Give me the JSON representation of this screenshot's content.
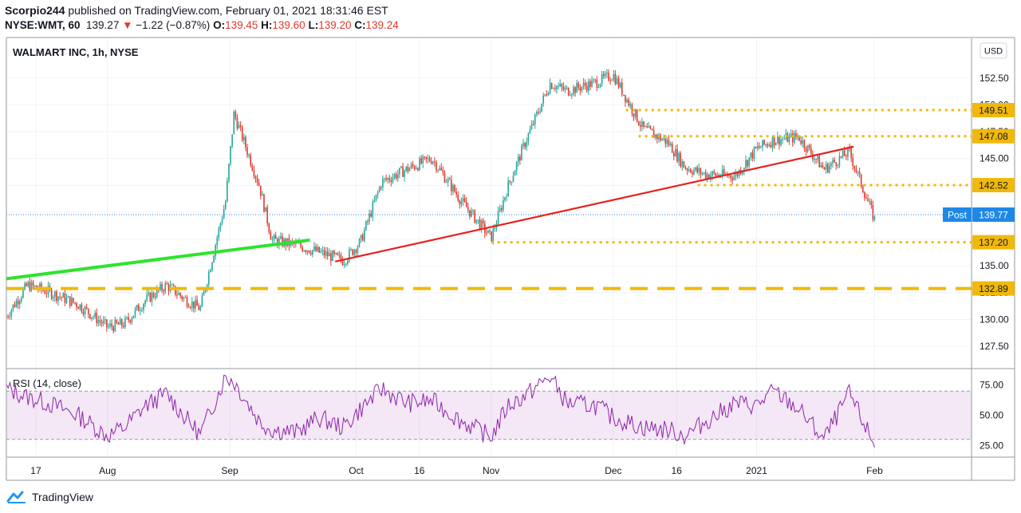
{
  "header": {
    "author": "Scorpio244",
    "published_text": "published on TradingView.com, February 01, 2021 18:31:46 EST",
    "symbol": "NYSE:WMT, 60",
    "last": "139.27",
    "change_arrow": "▼",
    "change": "−1.22 (−0.87%)",
    "open_label": "O:",
    "open": "139.45",
    "high_label": "H:",
    "high": "139.60",
    "low_label": "L:",
    "low": "139.20",
    "close_label": "C:",
    "close": "139.24"
  },
  "footer": {
    "brand": "TradingView"
  },
  "colors": {
    "up": "#26a69a",
    "down": "#e0392d",
    "red_trend": "#e8211c",
    "green_trend": "#2ee32e",
    "level": "#f0b90b",
    "rsi": "#8e24aa",
    "rsi_band": "rgba(186,104,200,0.16)",
    "post": "#1e88e5"
  },
  "chart_data": [
    {
      "type": "candlestick",
      "title": "WALMART INC, 1h, NYSE",
      "currency": "USD",
      "ylim": [
        125.5,
        156.2
      ],
      "y_ticks": [
        "152.50",
        "150.00",
        "147.50",
        "145.00",
        "142.50",
        "140.00",
        "137.50",
        "135.00",
        "132.50",
        "130.00",
        "127.50"
      ],
      "x_ticks": [
        "17",
        "Aug",
        "Sep",
        "Oct",
        "16",
        "Nov",
        "Dec",
        "16",
        "2021",
        "Feb"
      ],
      "x_tick_dates": [
        "2020-07-17",
        "2020-08-03",
        "2020-09-01",
        "2020-10-01",
        "2020-10-16",
        "2020-11-02",
        "2020-12-01",
        "2020-12-16",
        "2021-01-04",
        "2021-02-01"
      ],
      "x_range": [
        "2020-07-10",
        "2021-02-24"
      ],
      "series": [
        {
          "name": "WMT close (approx.)",
          "x": [
            "2020-07-10",
            "2020-07-15",
            "2020-07-20",
            "2020-07-27",
            "2020-08-03",
            "2020-08-07",
            "2020-08-12",
            "2020-08-17",
            "2020-08-21",
            "2020-08-25",
            "2020-08-31",
            "2020-09-02",
            "2020-09-08",
            "2020-09-11",
            "2020-09-17",
            "2020-09-22",
            "2020-09-28",
            "2020-10-02",
            "2020-10-07",
            "2020-10-13",
            "2020-10-19",
            "2020-10-26",
            "2020-11-02",
            "2020-11-06",
            "2020-11-10",
            "2020-11-16",
            "2020-11-20",
            "2020-11-27",
            "2020-12-01",
            "2020-12-08",
            "2020-12-14",
            "2020-12-18",
            "2020-12-23",
            "2020-12-30",
            "2021-01-04",
            "2021-01-08",
            "2021-01-14",
            "2021-01-20",
            "2021-01-26",
            "2021-02-01"
          ],
          "close": [
            130.3,
            133.2,
            132.6,
            131.4,
            129.3,
            129.6,
            131.8,
            133.2,
            132.0,
            131.0,
            141.0,
            149.2,
            142.5,
            137.4,
            136.9,
            136.3,
            135.5,
            137.2,
            142.8,
            144.0,
            145.0,
            141.0,
            137.6,
            142.4,
            146.4,
            152.0,
            151.3,
            152.1,
            152.8,
            147.8,
            146.5,
            144.2,
            143.5,
            143.4,
            145.9,
            146.7,
            147.0,
            144.0,
            145.6,
            139.3
          ]
        },
        {
          "name": "Red trend line",
          "x": [
            "2020-09-26",
            "2021-01-27"
          ],
          "y": [
            135.4,
            146.1
          ]
        },
        {
          "name": "Green trend line",
          "x": [
            "2020-07-10",
            "2020-09-20"
          ],
          "y": [
            133.8,
            137.4
          ]
        }
      ],
      "horizontal_levels": [
        {
          "label": "149.51",
          "value": 149.51,
          "style": "dotted",
          "from": "2020-12-04"
        },
        {
          "label": "147.08",
          "value": 147.08,
          "style": "dotted",
          "from": "2020-12-07"
        },
        {
          "label": "142.52",
          "value": 142.52,
          "style": "dotted",
          "from": "2020-12-21"
        },
        {
          "label": "137.20",
          "value": 137.2,
          "style": "dotted",
          "from": "2020-11-02"
        },
        {
          "label": "132.89",
          "value": 132.89,
          "style": "dashed",
          "from": "2020-07-10"
        }
      ],
      "post_label": "Post",
      "post_price": "139.77",
      "post_value": 139.77
    },
    {
      "type": "line",
      "title": "RSI (14, close)",
      "ylim": [
        16,
        88
      ],
      "y_ticks": [
        "75.00",
        "50.00",
        "25.00"
      ],
      "band": [
        30,
        70
      ],
      "series": [
        {
          "name": "RSI",
          "x": [
            "2020-07-10",
            "2020-07-15",
            "2020-07-20",
            "2020-07-27",
            "2020-08-03",
            "2020-08-07",
            "2020-08-12",
            "2020-08-17",
            "2020-08-21",
            "2020-08-25",
            "2020-08-31",
            "2020-09-02",
            "2020-09-08",
            "2020-09-11",
            "2020-09-17",
            "2020-09-22",
            "2020-09-28",
            "2020-10-02",
            "2020-10-07",
            "2020-10-13",
            "2020-10-19",
            "2020-10-26",
            "2020-11-02",
            "2020-11-06",
            "2020-11-10",
            "2020-11-16",
            "2020-11-20",
            "2020-11-27",
            "2020-12-01",
            "2020-12-08",
            "2020-12-14",
            "2020-12-18",
            "2020-12-23",
            "2020-12-30",
            "2021-01-04",
            "2021-01-08",
            "2021-01-14",
            "2021-01-20",
            "2021-01-26",
            "2021-02-01"
          ],
          "values": [
            72,
            65,
            60,
            50,
            33,
            40,
            58,
            68,
            50,
            34,
            82,
            78,
            45,
            38,
            36,
            48,
            40,
            55,
            72,
            60,
            62,
            45,
            32,
            58,
            66,
            82,
            60,
            58,
            48,
            40,
            38,
            33,
            45,
            60,
            58,
            70,
            55,
            30,
            68,
            25
          ]
        }
      ]
    }
  ]
}
